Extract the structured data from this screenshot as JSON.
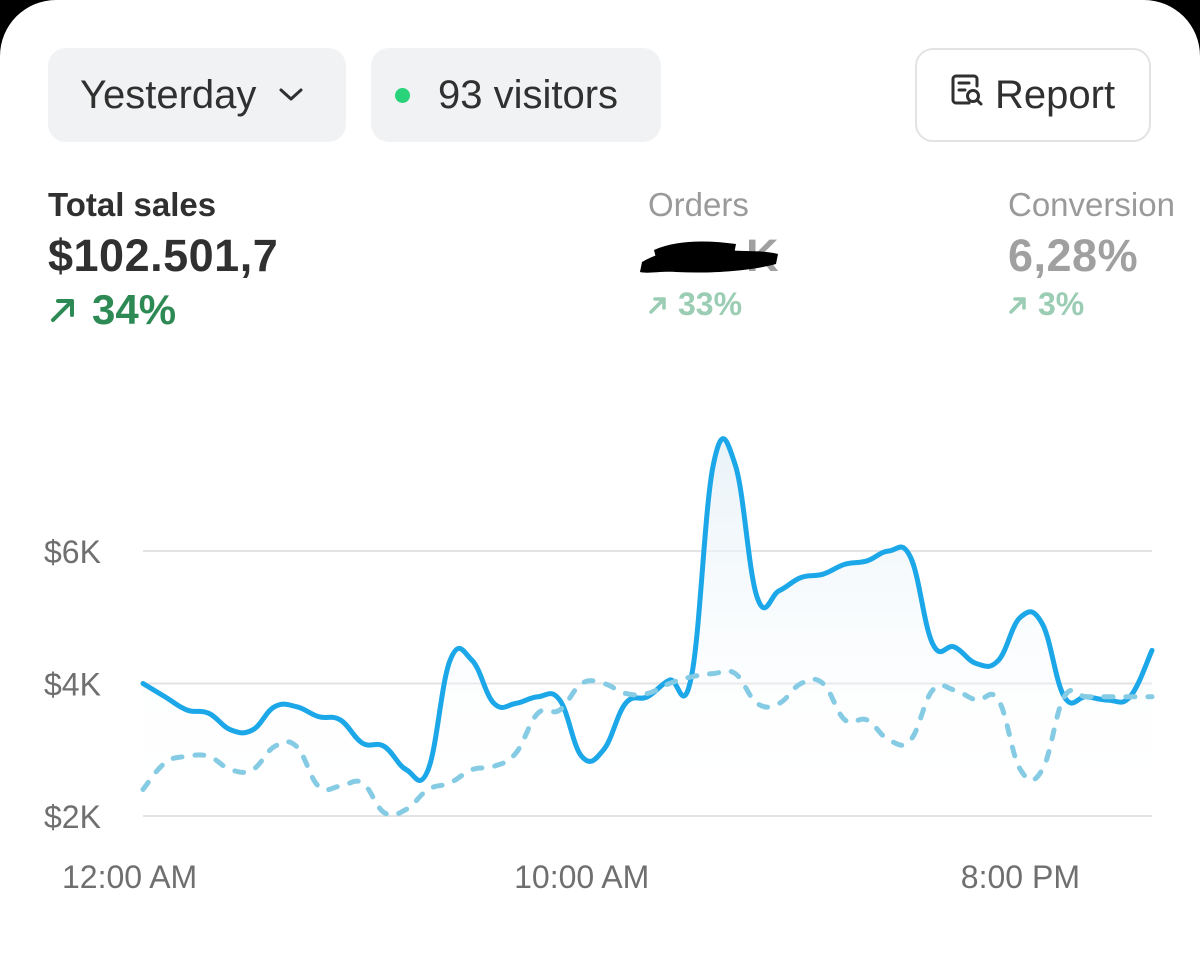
{
  "controls": {
    "period_label": "Yesterday",
    "visitors_label": "93 visitors",
    "report_label": "Report"
  },
  "metrics": {
    "total_sales": {
      "label": "Total sales",
      "value": "$102.501,7",
      "delta": "34%"
    },
    "orders": {
      "label": "Orders",
      "value": "K",
      "delta": "33%"
    },
    "conversion": {
      "label": "Conversion",
      "value": "6,28%",
      "delta": "3%"
    }
  },
  "colors": {
    "current_series": "#1ba7e8",
    "comparison_series": "#86cbe4",
    "positive_delta": "#2e8a55",
    "visitors_dot": "#29d37a"
  },
  "chart_data": {
    "type": "line",
    "y_ticks": [
      "$2K",
      "$4K",
      "$6K"
    ],
    "x_ticks": [
      "12:00 AM",
      "10:00 AM",
      "8:00 PM"
    ],
    "ylim": [
      2000,
      7500
    ],
    "grid": true,
    "series": [
      {
        "style": "solid",
        "x": [
          0,
          0.5,
          1,
          1.5,
          2,
          2.5,
          3,
          3.5,
          4,
          4.5,
          5,
          5.5,
          6,
          6.5,
          7,
          7.5,
          8,
          8.5,
          9,
          9.5,
          10,
          10.5,
          11,
          11.5,
          12,
          12.5,
          13,
          13.5,
          14,
          14.5,
          15,
          15.5,
          16,
          16.5,
          17,
          17.5,
          18,
          18.5,
          19,
          19.5,
          20,
          20.5,
          21,
          21.5,
          22,
          22.5,
          23
        ],
        "values": [
          4000,
          3800,
          3600,
          3550,
          3300,
          3300,
          3650,
          3650,
          3500,
          3450,
          3100,
          3050,
          2700,
          2700,
          4350,
          4350,
          3700,
          3700,
          3800,
          3750,
          2900,
          3000,
          3700,
          3800,
          4050,
          4100,
          7300,
          7300,
          5300,
          5400,
          5600,
          5650,
          5800,
          5850,
          6000,
          5900,
          4600,
          4550,
          4300,
          4350,
          5000,
          4900,
          3800,
          3800,
          3750,
          3800,
          4500
        ]
      },
      {
        "style": "dashed",
        "x": [
          0,
          0.5,
          1,
          1.5,
          2,
          2.5,
          3,
          3.5,
          4,
          4.5,
          5,
          5.5,
          6,
          6.5,
          7,
          7.5,
          8,
          8.5,
          9,
          9.5,
          10,
          10.5,
          11,
          11.5,
          12,
          12.5,
          13,
          13.5,
          14,
          14.5,
          15,
          15.5,
          16,
          16.5,
          17,
          17.5,
          18,
          18.5,
          19,
          19.5,
          20,
          20.5,
          21,
          21.5,
          22,
          22.5,
          23
        ],
        "values": [
          2400,
          2800,
          2900,
          2900,
          2700,
          2700,
          3050,
          3050,
          2450,
          2450,
          2500,
          2050,
          2100,
          2400,
          2500,
          2700,
          2750,
          2950,
          3550,
          3600,
          4000,
          4000,
          3850,
          3850,
          4000,
          4100,
          4150,
          4150,
          3700,
          3700,
          4000,
          4000,
          3450,
          3450,
          3150,
          3150,
          3900,
          3900,
          3750,
          3750,
          2700,
          2700,
          3800,
          3800,
          3800,
          3800,
          3800
        ]
      }
    ]
  }
}
